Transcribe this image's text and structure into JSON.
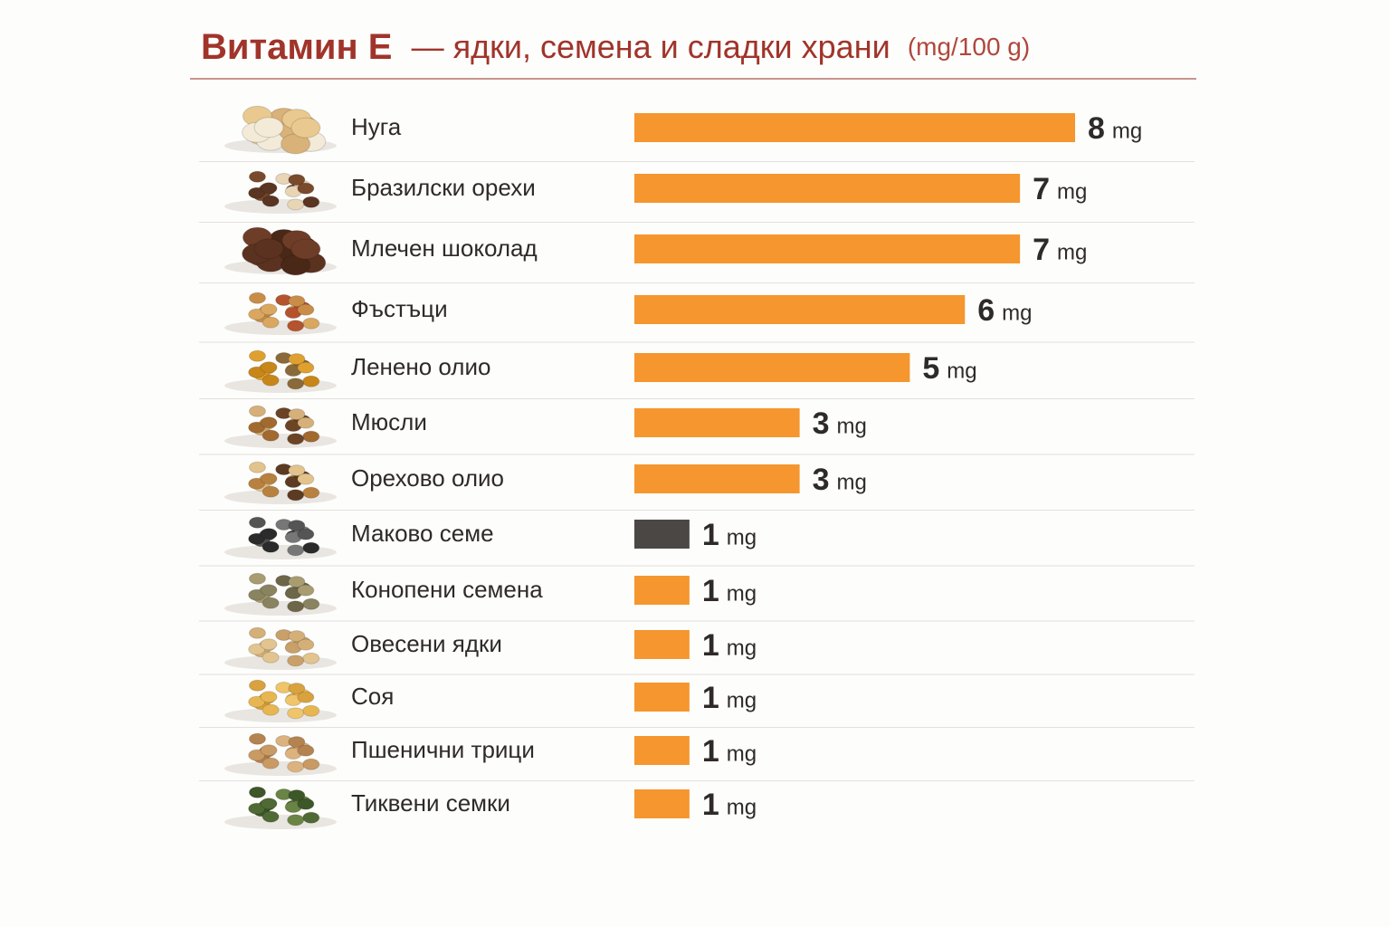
{
  "chart_data": {
    "type": "bar",
    "orientation": "horizontal",
    "title": "Витамин E",
    "subtitle": "— ядки, семена и сладки храни",
    "unit_note": "(mg/100 g)",
    "unit": "mg",
    "categories": [
      "Нуга",
      "Бразилски орехи",
      "Млечен шоколад",
      "Фъстъци",
      "Ленено олио",
      "Мюсли",
      "Орехово олио",
      "Маково семе",
      "Конопени семена",
      "Овесени ядки",
      "Соя",
      "Пшенични трици",
      "Тиквени семки"
    ],
    "values": [
      8,
      7,
      7,
      6,
      5,
      3,
      3,
      1,
      1,
      1,
      1,
      1,
      1
    ],
    "colors": [
      "#f5962e",
      "#f5962e",
      "#f5962e",
      "#f5962e",
      "#f5962e",
      "#f5962e",
      "#f5962e",
      "#4a4744",
      "#f5962e",
      "#f5962e",
      "#f5962e",
      "#f5962e",
      "#f5962e"
    ]
  }
}
